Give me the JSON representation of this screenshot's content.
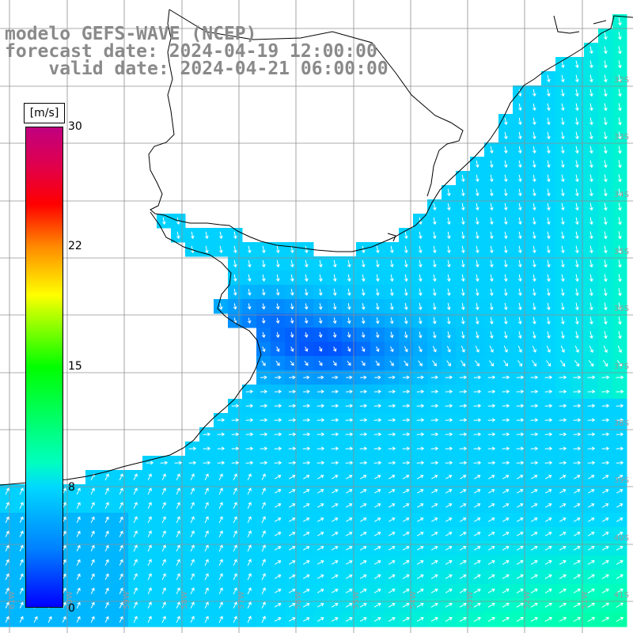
{
  "title": {
    "line1": "modelo GEFS-WAVE (NCEP)",
    "line2": "forecast date: 2024-04-19 12:00:00",
    "line3": "    valid date: 2024-04-21 06:00:00"
  },
  "colorbar": {
    "unit": "[m/s]",
    "ticks": [
      "30",
      "22",
      "15",
      "8",
      "0"
    ],
    "range": [
      0,
      30
    ],
    "colors": [
      "#0000ff",
      "#0080ff",
      "#00d8ff",
      "#00ffc0",
      "#00ff00",
      "#ffff00",
      "#ff8c00",
      "#ff0000",
      "#c00080"
    ]
  },
  "lat_labels": [
    "32S",
    "33S",
    "34S",
    "35S",
    "36S",
    "37S",
    "38S",
    "39S",
    "40S",
    "41S"
  ],
  "lon_labels": [
    "61W",
    "60W",
    "59W",
    "58W",
    "57W",
    "56W",
    "55W",
    "54W",
    "53W",
    "52W",
    "51W"
  ],
  "field": {
    "variable": "wind speed",
    "units": "m/s",
    "lat_range": [
      -42,
      -31
    ],
    "lon_range": [
      -62,
      -51
    ],
    "summary": [
      {
        "region": "Rio de la Plata / offshore Buenos Aires",
        "speed_ms": 3,
        "direction": "southward"
      },
      {
        "region": "offshore Uruguay / southern Brazil",
        "speed_ms": 7,
        "direction": "southward"
      },
      {
        "region": "southern shelf off Argentina",
        "speed_ms": 7,
        "direction": "northeastward"
      },
      {
        "region": "south-east corner",
        "speed_ms": 12,
        "direction": "eastward"
      }
    ]
  },
  "colors": {
    "title_text": "#8a8a8a",
    "grid": "#909090",
    "coast": "#000000",
    "arrows": "#ffffff",
    "land": "#ffffff"
  }
}
